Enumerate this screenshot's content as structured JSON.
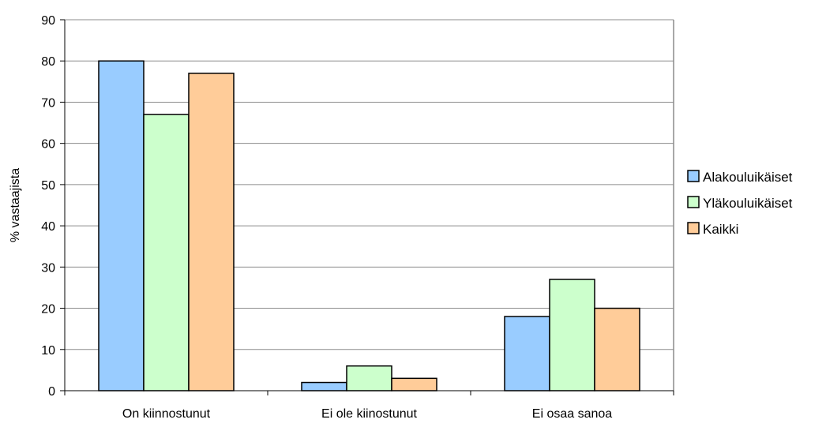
{
  "chart_data": {
    "type": "bar",
    "title": "",
    "xlabel": "",
    "ylabel": "% vastaajista",
    "ylim": [
      0,
      90
    ],
    "yticks": [
      0,
      10,
      20,
      30,
      40,
      50,
      60,
      70,
      80,
      90
    ],
    "categories": [
      "On kiinnostunut",
      "Ei ole kiinostunut",
      "Ei osaa sanoa"
    ],
    "series": [
      {
        "name": "Alakouluikäiset",
        "values": [
          80,
          2,
          18
        ],
        "color": "#99CCFF"
      },
      {
        "name": "Yläkouluikäiset",
        "values": [
          67,
          6,
          27
        ],
        "color": "#CCFFCC"
      },
      {
        "name": "Kaikki",
        "values": [
          77,
          3,
          20
        ],
        "color": "#FFCC99"
      }
    ],
    "grid": true,
    "legend_position": "right"
  }
}
